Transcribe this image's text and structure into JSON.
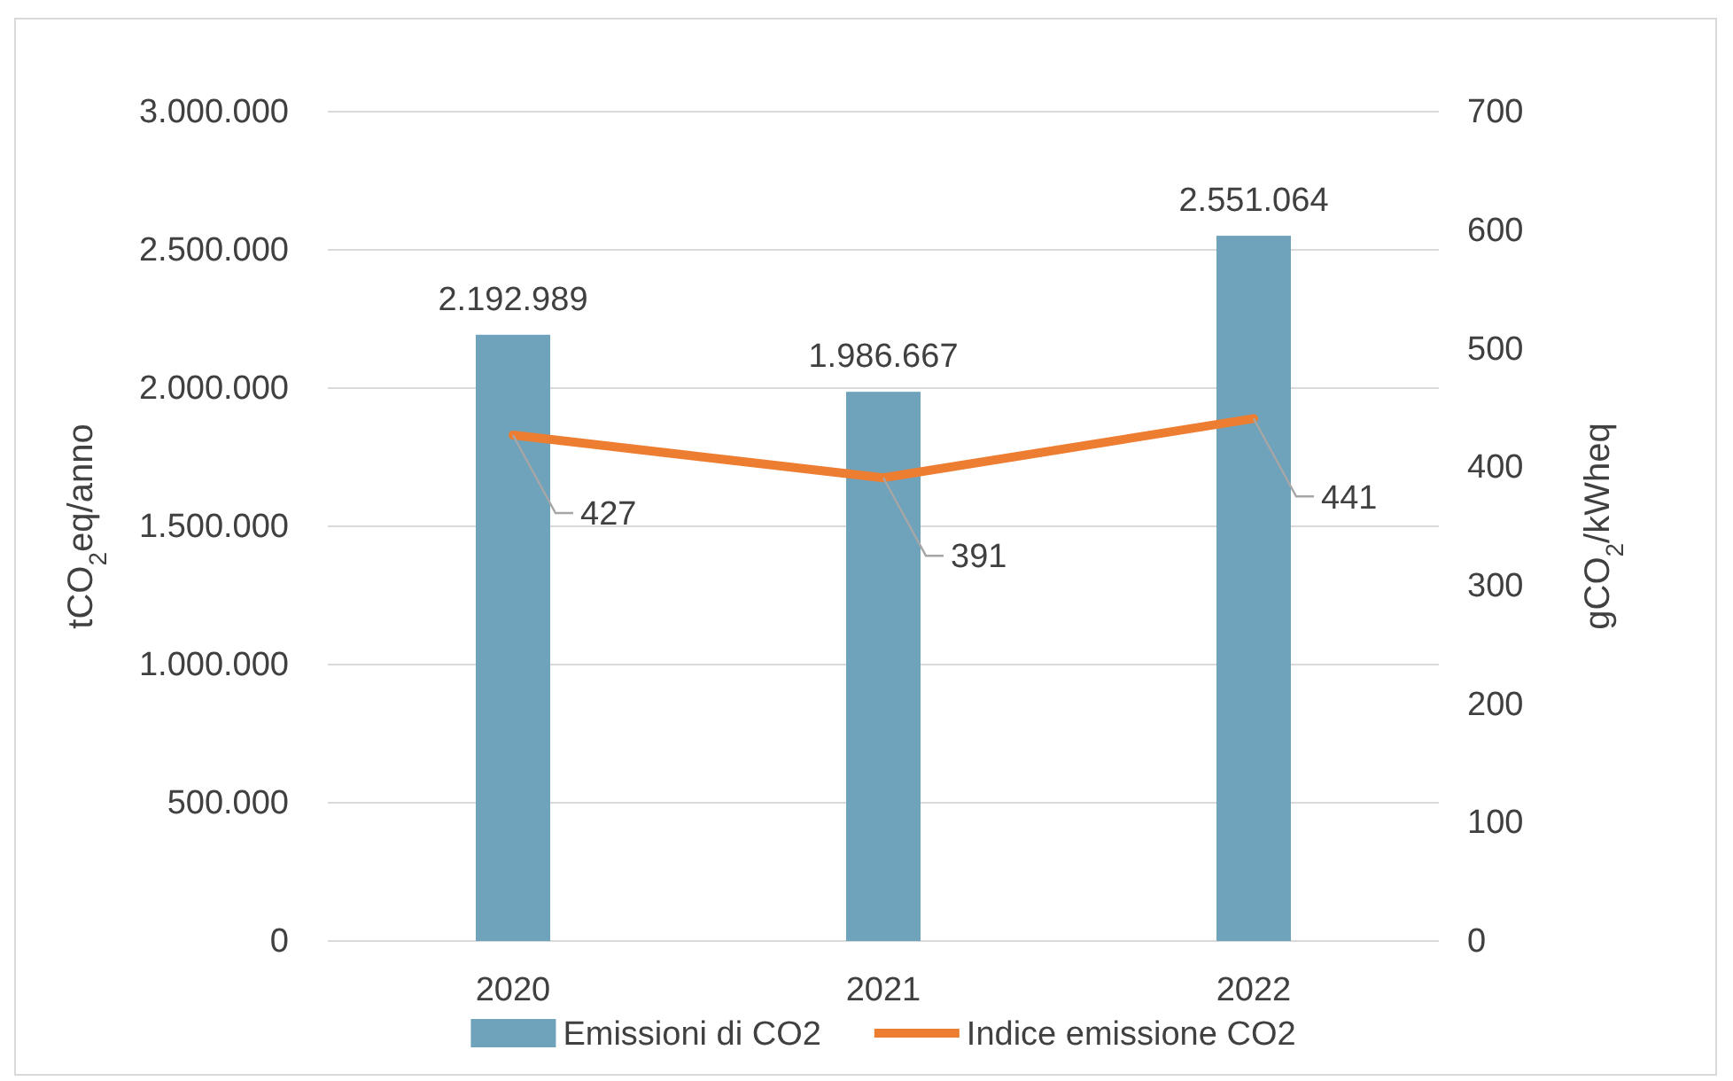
{
  "chart_data": {
    "type": "bar",
    "categories": [
      "2020",
      "2021",
      "2022"
    ],
    "series": [
      {
        "name": "Emissioni di CO2",
        "color": "#6fa3bb",
        "values": [
          2192989,
          1986667,
          2551064
        ],
        "value_labels": [
          "2.192.989",
          "1.986.667",
          "2.551.064"
        ]
      },
      {
        "name": "Indice emissione CO2",
        "type": "line",
        "axis": "y2",
        "color": "#ed7d31",
        "values": [
          427,
          391,
          441
        ],
        "value_labels": [
          "427",
          "391",
          "441"
        ]
      }
    ],
    "ylabel": "tCO$_{2}$eq/anno",
    "y2label": "gCO$_{2}$/kWheq",
    "ylim": [
      0,
      3000000
    ],
    "yticks": [
      0,
      {
        "value": 500000,
        "label": "500.000"
      },
      {
        "value": 1000000,
        "label": "1.000.000"
      },
      {
        "value": 1500000,
        "label": "1.500.000"
      },
      {
        "value": 2000000,
        "label": "2.000.000"
      },
      {
        "value": 2500000,
        "label": "2.500.000"
      },
      {
        "value": 3000000,
        "label": "3.000.000"
      }
    ],
    "y2lim": [
      0,
      700
    ],
    "y2ticks": [
      0,
      100,
      200,
      300,
      400,
      500,
      600,
      700
    ],
    "grid": "y",
    "legend": "bottom",
    "marker": "none",
    "line_style": "solid"
  }
}
